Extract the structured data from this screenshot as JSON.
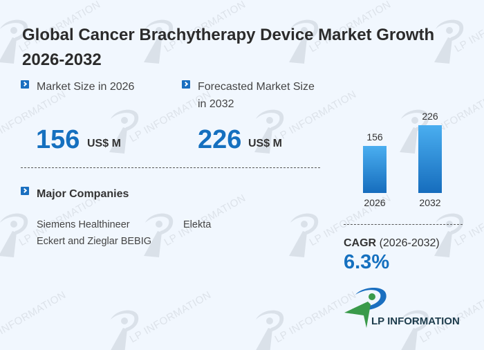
{
  "title": "Global Cancer Brachytherapy Device Market Growth 2026-2032",
  "market_size": {
    "label": "Market Size in 2026",
    "value": "156",
    "unit": "US$ M"
  },
  "forecast": {
    "label_line1": "Forecasted Market Size",
    "label_line2": "in 2032",
    "value": "226",
    "unit": "US$ M"
  },
  "companies": {
    "heading": "Major Companies",
    "items": [
      "Siemens Healthineer",
      "Elekta",
      "Eckert and Zieglar BEBIG"
    ]
  },
  "chart_data": {
    "type": "bar",
    "categories": [
      "2026",
      "2032"
    ],
    "values": [
      156,
      226
    ],
    "value_labels": [
      "156",
      "226"
    ],
    "ylim": [
      0,
      226
    ]
  },
  "cagr": {
    "label": "CAGR",
    "period": "(2026-2032)",
    "value": "6.3%"
  },
  "logo": {
    "text": "LP INFORMATION"
  },
  "watermark": "LP INFORMATION",
  "colors": {
    "accent": "#1570bf",
    "background": "#f1f7fe",
    "logo_green": "#3a9a4a"
  }
}
